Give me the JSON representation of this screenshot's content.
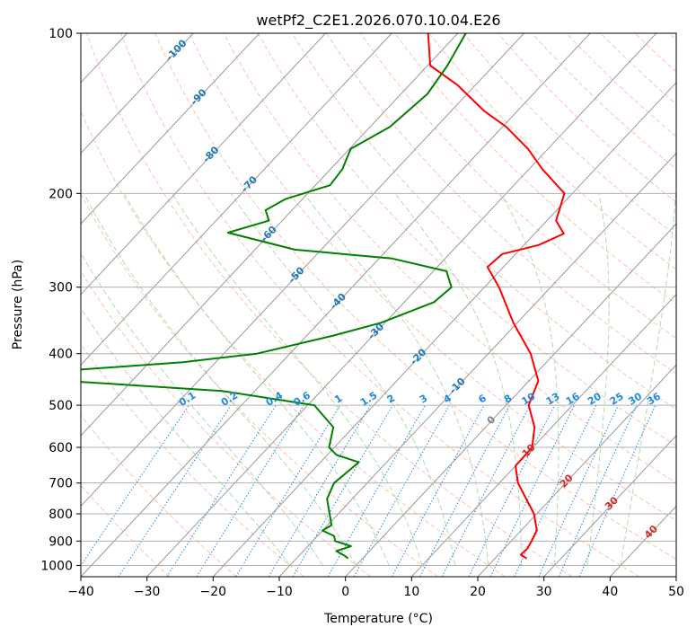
{
  "chart_data": {
    "type": "skew-t",
    "title": "wetPf2_C2E1.2026.070.10.04.E26",
    "xlabel": "Temperature (°C)",
    "ylabel": "Pressure (hPa)",
    "xlim": [
      -40,
      50
    ],
    "ylim": [
      1050,
      100
    ],
    "y_scale": "log",
    "grid": true,
    "x_ticks": [
      "−40",
      "−30",
      "−20",
      "−10",
      "0",
      "10",
      "20",
      "30",
      "40",
      "50"
    ],
    "x_tick_values": [
      -40,
      -30,
      -20,
      -10,
      0,
      10,
      20,
      30,
      40,
      50
    ],
    "y_ticks": [
      "100",
      "200",
      "300",
      "400",
      "500",
      "600",
      "700",
      "800",
      "900",
      "1000"
    ],
    "y_tick_values": [
      100,
      200,
      300,
      400,
      500,
      600,
      700,
      800,
      900,
      1000
    ],
    "series": [
      {
        "role": "temperature",
        "color": "#ff0000",
        "points": [
          [
            24.8,
            970
          ],
          [
            23.4,
            955
          ],
          [
            23.5,
            930
          ],
          [
            23.1,
            900
          ],
          [
            22.4,
            860
          ],
          [
            19.6,
            800
          ],
          [
            12.8,
            700
          ],
          [
            10.0,
            650
          ],
          [
            9.9,
            600
          ],
          [
            7.4,
            550
          ],
          [
            3.4,
            500
          ],
          [
            1.4,
            450
          ],
          [
            -3.6,
            400
          ],
          [
            -10.6,
            350
          ],
          [
            -17.8,
            300
          ],
          [
            -22.4,
            275
          ],
          [
            -22.0,
            260
          ],
          [
            -17.8,
            250
          ],
          [
            -15.6,
            238
          ],
          [
            -18.6,
            225
          ],
          [
            -21.2,
            200
          ],
          [
            -28.0,
            180
          ],
          [
            -33.0,
            165
          ],
          [
            -39.4,
            150
          ],
          [
            -45.0,
            140
          ],
          [
            -52.8,
            125
          ],
          [
            -59.6,
            115
          ],
          [
            -64.5,
            100
          ]
        ]
      },
      {
        "role": "dewpoint",
        "color": "#008000",
        "points": [
          [
            -2.2,
            970
          ],
          [
            -3.0,
            960
          ],
          [
            -5.0,
            940
          ],
          [
            -3.5,
            920
          ],
          [
            -6.6,
            900
          ],
          [
            -7.5,
            880
          ],
          [
            -10.0,
            860
          ],
          [
            -9.4,
            840
          ],
          [
            -11.3,
            800
          ],
          [
            -13.8,
            750
          ],
          [
            -15.0,
            700
          ],
          [
            -14.2,
            640
          ],
          [
            -18.6,
            620
          ],
          [
            -20.8,
            600
          ],
          [
            -23.0,
            550
          ],
          [
            -29.0,
            500
          ],
          [
            -45.0,
            470
          ],
          [
            -70.0,
            450
          ],
          [
            -80.0,
            440
          ],
          [
            -71.0,
            430
          ],
          [
            -55.0,
            415
          ],
          [
            -45.0,
            400
          ],
          [
            -36.0,
            370
          ],
          [
            -30.6,
            350
          ],
          [
            -25.5,
            320
          ],
          [
            -25.0,
            300
          ],
          [
            -28.0,
            280
          ],
          [
            -38.0,
            265
          ],
          [
            -54.0,
            255
          ],
          [
            -66.5,
            237
          ],
          [
            -62.0,
            225
          ],
          [
            -64.0,
            215
          ],
          [
            -62.6,
            205
          ],
          [
            -57.8,
            193
          ],
          [
            -58.2,
            180
          ],
          [
            -59.8,
            165
          ],
          [
            -57.0,
            150
          ],
          [
            -56.0,
            130
          ],
          [
            -57.0,
            115
          ],
          [
            -58.8,
            100
          ]
        ]
      }
    ],
    "mixing_ratio_labels": [
      "0.1",
      "0.2",
      "0.4",
      "0.6",
      "1",
      "1.5",
      "2",
      "3",
      "4",
      "6",
      "8",
      "10",
      "13",
      "16",
      "20",
      "25",
      "30",
      "36"
    ],
    "isotherm_labels": [
      "-100",
      "-90",
      "-80",
      "-70",
      "-60",
      "-50",
      "-40",
      "-30",
      "-20",
      "-10"
    ],
    "warm_isotherm_labels": [
      "0",
      "10",
      "20",
      "30",
      "40"
    ],
    "colors": {
      "temperature": "#ff0000",
      "dewpoint": "#008000",
      "dry_adiabat": "#ff9b7a",
      "moist_adiabat": "#8fcf8f",
      "mixing_ratio": "#1e88e5",
      "isotherm_label_cold": "#1f77b4",
      "isotherm_label_warm": "#d62728",
      "isotherm_label_zero": "#808080",
      "grid": "#b0b0b0",
      "skewed_isotherm": "#999999"
    }
  }
}
